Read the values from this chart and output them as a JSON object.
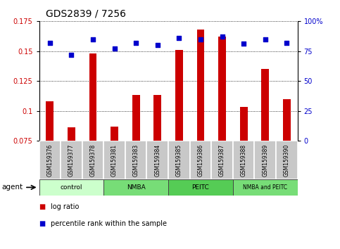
{
  "title": "GDS2839 / 7256",
  "samples": [
    "GSM159376",
    "GSM159377",
    "GSM159378",
    "GSM159381",
    "GSM159383",
    "GSM159384",
    "GSM159385",
    "GSM159386",
    "GSM159387",
    "GSM159388",
    "GSM159389",
    "GSM159390"
  ],
  "log_ratio": [
    0.108,
    0.086,
    0.148,
    0.087,
    0.113,
    0.113,
    0.151,
    0.168,
    0.162,
    0.103,
    0.135,
    0.11
  ],
  "percentile_rank": [
    82,
    72,
    85,
    77,
    82,
    80,
    86,
    85,
    87,
    81,
    85,
    82
  ],
  "bar_color": "#cc0000",
  "dot_color": "#0000cc",
  "ylim_left": [
    0.075,
    0.175
  ],
  "ylim_right": [
    0,
    100
  ],
  "yticks_left": [
    0.075,
    0.1,
    0.125,
    0.15,
    0.175
  ],
  "ytick_labels_left": [
    "0.075",
    "0.1",
    "0.125",
    "0.15",
    "0.175"
  ],
  "yticks_right": [
    0,
    25,
    50,
    75,
    100
  ],
  "ytick_labels_right": [
    "0",
    "25",
    "50",
    "75",
    "100%"
  ],
  "bar_width": 0.35,
  "group_defs": [
    [
      0,
      3,
      "control",
      "#ccffcc"
    ],
    [
      3,
      6,
      "NMBA",
      "#77dd77"
    ],
    [
      6,
      9,
      "PEITC",
      "#55cc55"
    ],
    [
      9,
      12,
      "NMBA and PEITC",
      "#77dd77"
    ]
  ],
  "sample_box_color": "#c8c8c8",
  "legend_items": [
    {
      "label": "log ratio",
      "color": "#cc0000"
    },
    {
      "label": "percentile rank within the sample",
      "color": "#0000cc"
    }
  ]
}
